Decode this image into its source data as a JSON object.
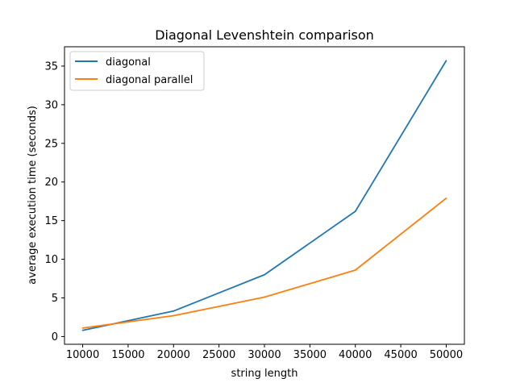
{
  "chart_data": {
    "type": "line",
    "title": "Diagonal Levenshtein comparison",
    "xlabel": "string length",
    "ylabel": "average execution time (seconds)",
    "x": [
      10000,
      20000,
      30000,
      40000,
      50000
    ],
    "xlim": [
      8000,
      52000
    ],
    "ylim": [
      -1.0,
      37.5
    ],
    "xticks": [
      10000,
      15000,
      20000,
      25000,
      30000,
      35000,
      40000,
      45000,
      50000
    ],
    "yticks": [
      0,
      5,
      10,
      15,
      20,
      25,
      30,
      35
    ],
    "grid": false,
    "legend_position": "top-left",
    "series": [
      {
        "name": "diagonal",
        "color": "#1f77b4",
        "values": [
          0.8,
          3.3,
          8.0,
          16.2,
          35.7
        ]
      },
      {
        "name": "diagonal parallel",
        "color": "#ff7f0e",
        "values": [
          1.1,
          2.7,
          5.1,
          8.6,
          17.9
        ]
      }
    ]
  }
}
